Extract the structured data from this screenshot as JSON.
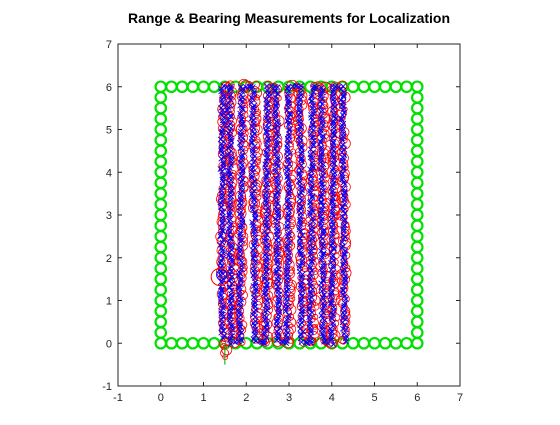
{
  "chart_data": {
    "type": "scatter",
    "title": "Range & Bearing Measurements for Localization",
    "xlabel": "",
    "ylabel": "",
    "xlim": [
      -1,
      7
    ],
    "ylim": [
      -1,
      7
    ],
    "x_ticks": [
      "-1",
      "0",
      "1",
      "2",
      "3",
      "4",
      "5",
      "6",
      "7"
    ],
    "y_ticks": [
      "-1",
      "0",
      "1",
      "2",
      "3",
      "4",
      "5",
      "6",
      "7"
    ],
    "grid": false,
    "colors": {
      "landmarks": "#00e000",
      "estimate": "#ff0000",
      "measured": "#0000ff",
      "ground_truth": "#00a000",
      "axes": "#262626"
    },
    "series": [
      {
        "kind": "landmarks",
        "marker": "circle",
        "x": [
          0,
          0.25,
          0.5,
          0.75,
          1,
          1.25,
          1.5,
          1.75,
          2,
          2.25,
          2.5,
          2.75,
          3,
          3.25,
          3.5,
          3.75,
          4,
          4.25,
          4.5,
          4.75,
          5,
          5.25,
          5.5,
          5.75,
          6,
          0,
          0.25,
          0.5,
          0.75,
          1,
          1.25,
          1.5,
          1.75,
          2,
          2.25,
          2.5,
          2.75,
          3,
          3.25,
          3.5,
          3.75,
          4,
          4.25,
          4.5,
          4.75,
          5,
          5.25,
          5.5,
          5.75,
          6,
          0,
          0,
          0,
          0,
          0,
          0,
          0,
          0,
          0,
          0,
          0,
          0,
          0,
          0,
          0,
          0,
          0,
          0,
          0,
          0,
          0,
          0,
          0,
          6,
          6,
          6,
          6,
          6,
          6,
          6,
          6,
          6,
          6,
          6,
          6,
          6,
          6,
          6,
          6,
          6,
          6,
          6,
          6,
          6,
          6,
          6
        ],
        "y": [
          0,
          0,
          0,
          0,
          0,
          0,
          0,
          0,
          0,
          0,
          0,
          0,
          0,
          0,
          0,
          0,
          0,
          0,
          0,
          0,
          0,
          0,
          0,
          0,
          0,
          6,
          6,
          6,
          6,
          6,
          6,
          6,
          6,
          6,
          6,
          6,
          6,
          6,
          6,
          6,
          6,
          6,
          6,
          6,
          6,
          6,
          6,
          6,
          6,
          6,
          0.25,
          0.5,
          0.75,
          1,
          1.25,
          1.5,
          1.75,
          2,
          2.25,
          2.5,
          2.75,
          3,
          3.25,
          3.5,
          3.75,
          4,
          4.25,
          4.5,
          4.75,
          5,
          5.25,
          5.5,
          5.75,
          0.25,
          0.5,
          0.75,
          1,
          1.25,
          1.5,
          1.75,
          2,
          2.25,
          2.5,
          2.75,
          3,
          3.25,
          3.5,
          3.75,
          4,
          4.25,
          4.5,
          4.75,
          5,
          5.25,
          5.5,
          5.75
        ]
      },
      {
        "kind": "estimate",
        "marker": "circle",
        "path": [
          [
            1.5,
            -0.3
          ],
          [
            1.5,
            0.05
          ],
          [
            1.45,
            1.6
          ],
          [
            1.5,
            6.0
          ],
          [
            1.62,
            6.02
          ],
          [
            1.7,
            0.05
          ],
          [
            1.85,
            0.0
          ],
          [
            1.95,
            6.02
          ],
          [
            2.2,
            6.02
          ],
          [
            2.25,
            0.05
          ],
          [
            2.45,
            0.02
          ],
          [
            2.55,
            6.02
          ],
          [
            2.7,
            6.02
          ],
          [
            2.75,
            0.05
          ],
          [
            3.0,
            0.02
          ],
          [
            3.05,
            6.0
          ],
          [
            3.25,
            6.0
          ],
          [
            3.35,
            0.05
          ],
          [
            3.55,
            0.02
          ],
          [
            3.6,
            6.02
          ],
          [
            3.8,
            6.0
          ],
          [
            3.85,
            0.03
          ],
          [
            4.05,
            0.02
          ],
          [
            4.05,
            6.0
          ],
          [
            4.25,
            6.0
          ],
          [
            4.3,
            0.02
          ]
        ]
      },
      {
        "kind": "measured",
        "marker": "x",
        "path": [
          [
            1.45,
            0.1
          ],
          [
            1.42,
            1.7
          ],
          [
            1.45,
            6.0
          ],
          [
            1.6,
            6.0
          ],
          [
            1.65,
            0.0
          ],
          [
            1.85,
            0.05
          ],
          [
            1.9,
            6.0
          ],
          [
            2.15,
            6.0
          ],
          [
            2.2,
            0.05
          ],
          [
            2.45,
            0.0
          ],
          [
            2.5,
            6.0
          ],
          [
            2.7,
            6.0
          ],
          [
            2.75,
            0.05
          ],
          [
            2.95,
            0.0
          ],
          [
            3.0,
            6.0
          ],
          [
            3.25,
            6.0
          ],
          [
            3.3,
            0.05
          ],
          [
            3.5,
            0.0
          ],
          [
            3.55,
            6.0
          ],
          [
            3.75,
            6.0
          ],
          [
            3.8,
            0.05
          ],
          [
            4.0,
            0.0
          ],
          [
            4.05,
            6.0
          ],
          [
            4.25,
            6.0
          ],
          [
            4.3,
            0.05
          ]
        ]
      },
      {
        "kind": "ground_truth",
        "marker": "line",
        "path": [
          [
            1.5,
            -0.5
          ],
          [
            1.5,
            0.0
          ]
        ]
      },
      {
        "kind": "robot",
        "marker": "circle",
        "center": [
          1.38,
          1.55
        ],
        "radii": [
          0.2,
          0.12
        ]
      }
    ]
  }
}
